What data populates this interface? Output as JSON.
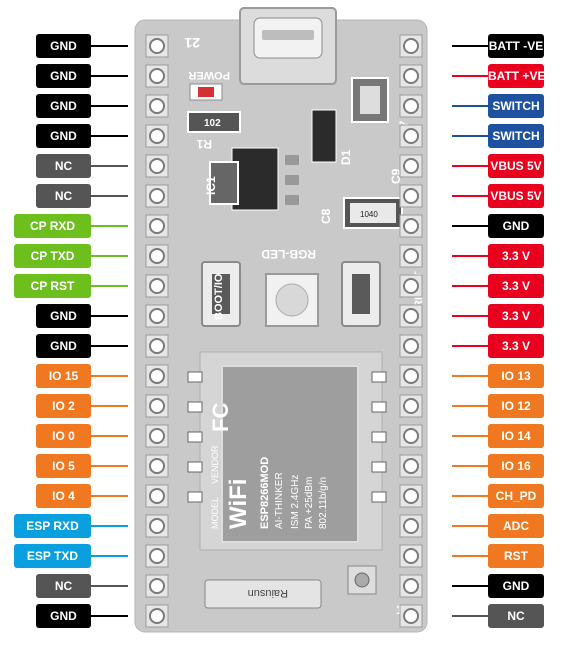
{
  "colors": {
    "black": "#000000",
    "gray": "#555555",
    "green": "#6cbf1c",
    "orange": "#f07820",
    "blue": "#0aa0e0",
    "navy": "#1e52a0",
    "red": "#e8001e",
    "board": "#c9c9c9"
  },
  "left_pins": [
    {
      "label": "GND",
      "color": "black"
    },
    {
      "label": "GND",
      "color": "black"
    },
    {
      "label": "GND",
      "color": "black"
    },
    {
      "label": "GND",
      "color": "black"
    },
    {
      "label": "NC",
      "color": "gray"
    },
    {
      "label": "NC",
      "color": "gray"
    },
    {
      "label": "CP RXD",
      "color": "green"
    },
    {
      "label": "CP TXD",
      "color": "green"
    },
    {
      "label": "CP RST",
      "color": "green"
    },
    {
      "label": "GND",
      "color": "black"
    },
    {
      "label": "GND",
      "color": "black"
    },
    {
      "label": "IO 15",
      "color": "orange"
    },
    {
      "label": "IO 2",
      "color": "orange"
    },
    {
      "label": "IO 0",
      "color": "orange"
    },
    {
      "label": "IO 5",
      "color": "orange"
    },
    {
      "label": "IO 4",
      "color": "orange"
    },
    {
      "label": "ESP RXD",
      "color": "blue"
    },
    {
      "label": "ESP TXD",
      "color": "blue"
    },
    {
      "label": "NC",
      "color": "gray"
    },
    {
      "label": "GND",
      "color": "black"
    }
  ],
  "right_pins": [
    {
      "label": "BATT -VE",
      "color": "black"
    },
    {
      "label": "BATT +VE",
      "color": "red"
    },
    {
      "label": "SWITCH",
      "color": "navy"
    },
    {
      "label": "SWITCH",
      "color": "navy"
    },
    {
      "label": "VBUS 5V",
      "color": "red"
    },
    {
      "label": "VBUS 5V",
      "color": "red"
    },
    {
      "label": "GND",
      "color": "black"
    },
    {
      "label": "3.3 V",
      "color": "red"
    },
    {
      "label": "3.3 V",
      "color": "red"
    },
    {
      "label": "3.3 V",
      "color": "red"
    },
    {
      "label": "3.3 V",
      "color": "red"
    },
    {
      "label": "IO 13",
      "color": "orange"
    },
    {
      "label": "IO 12",
      "color": "orange"
    },
    {
      "label": "IO 14",
      "color": "orange"
    },
    {
      "label": "IO 16",
      "color": "orange"
    },
    {
      "label": "CH_PD",
      "color": "orange"
    },
    {
      "label": "ADC",
      "color": "orange"
    },
    {
      "label": "RST",
      "color": "orange"
    },
    {
      "label": "GND",
      "color": "black"
    },
    {
      "label": "NC",
      "color": "gray"
    }
  ],
  "board": {
    "silk_21": "21",
    "silk_power": "POWER",
    "silk_102": "102",
    "silk_r1": "R1",
    "silk_ic1": "IC1",
    "silk_d1": "D1",
    "silk_c7": "C7",
    "silk_c9": "C9",
    "silk_c8": "C8",
    "silk_rgb_led": "RGB-LED",
    "silk_boot_io": "BOOT/IO",
    "silk_reset": "RESET",
    "silk_1040": "1040",
    "silk_1": "1",
    "module_wifi": "WiFi",
    "module_line1": "ESP8266MOD",
    "module_line2": "AI-THINKER",
    "module_line3": "ISM  2.4GHz",
    "module_line4": "PA  +25dBm",
    "module_line5": "802.11b/g/n",
    "module_model": "MODEL",
    "module_vendor": "VENDOR",
    "module_fc": "FC",
    "antenna_brand": "Raiusun"
  }
}
